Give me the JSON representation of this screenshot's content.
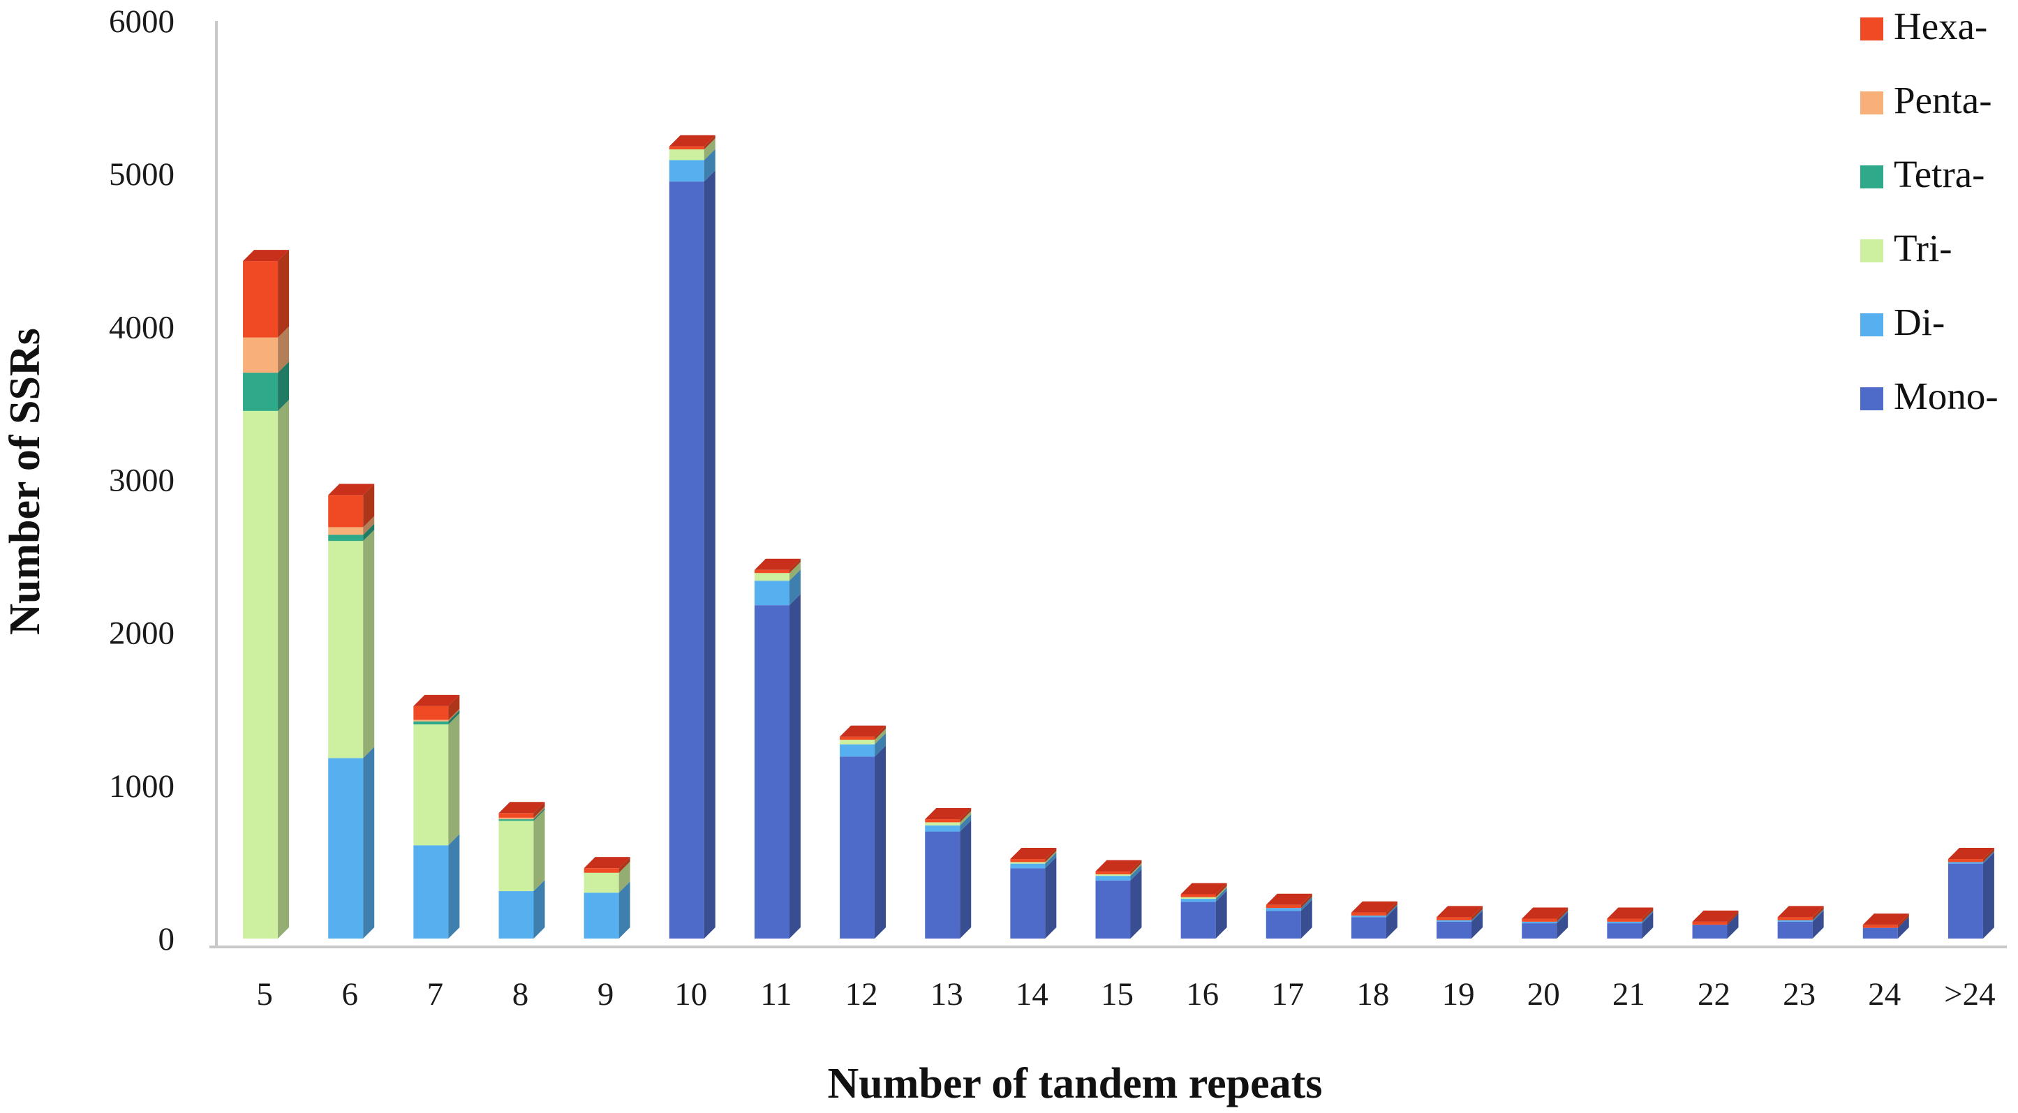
{
  "chart_data": {
    "type": "bar",
    "stacked": true,
    "style": "3d",
    "xlabel": "Number of tandem repeats",
    "ylabel": "Number of SSRs",
    "ylim": [
      0,
      6000
    ],
    "yticks": [
      0,
      1000,
      2000,
      3000,
      4000,
      5000,
      6000
    ],
    "grid": false,
    "legend_position": "top-right",
    "categories": [
      "5",
      "6",
      "7",
      "8",
      "9",
      "10",
      "11",
      "12",
      "13",
      "14",
      "15",
      "16",
      "17",
      "18",
      "19",
      "20",
      "21",
      "22",
      "23",
      "24",
      ">24"
    ],
    "series": [
      {
        "name": "Mono-",
        "color": "#4F6BC9",
        "values": [
          0,
          0,
          0,
          0,
          0,
          4950,
          2180,
          1190,
          700,
          460,
          380,
          240,
          180,
          140,
          110,
          100,
          100,
          90,
          110,
          70,
          490
        ]
      },
      {
        "name": "Di-",
        "color": "#56B0F0",
        "values": [
          0,
          1180,
          610,
          310,
          300,
          140,
          160,
          80,
          40,
          30,
          30,
          20,
          20,
          10,
          10,
          10,
          10,
          0,
          10,
          0,
          10
        ]
      },
      {
        "name": "Tri-",
        "color": "#CDF0A0",
        "values": [
          3450,
          1420,
          790,
          460,
          130,
          70,
          50,
          30,
          20,
          10,
          10,
          10,
          0,
          0,
          0,
          0,
          0,
          0,
          0,
          0,
          0
        ]
      },
      {
        "name": "Tetra-",
        "color": "#2EAA8A",
        "values": [
          250,
          40,
          20,
          10,
          0,
          0,
          0,
          0,
          0,
          0,
          0,
          0,
          0,
          0,
          0,
          0,
          0,
          0,
          0,
          0,
          0
        ]
      },
      {
        "name": "Penta-",
        "color": "#F8B07A",
        "values": [
          230,
          50,
          10,
          10,
          0,
          0,
          0,
          0,
          0,
          0,
          0,
          0,
          0,
          0,
          0,
          0,
          0,
          0,
          0,
          0,
          0
        ]
      },
      {
        "name": "Hexa-",
        "color": "#F04A24",
        "values": [
          500,
          210,
          90,
          30,
          30,
          20,
          20,
          20,
          20,
          20,
          20,
          20,
          20,
          20,
          20,
          20,
          20,
          20,
          20,
          20,
          20
        ]
      }
    ],
    "legend_order": [
      "Hexa-",
      "Penta-",
      "Tetra-",
      "Tri-",
      "Di-",
      "Mono-"
    ],
    "top_cap_color": "#C8301C"
  }
}
